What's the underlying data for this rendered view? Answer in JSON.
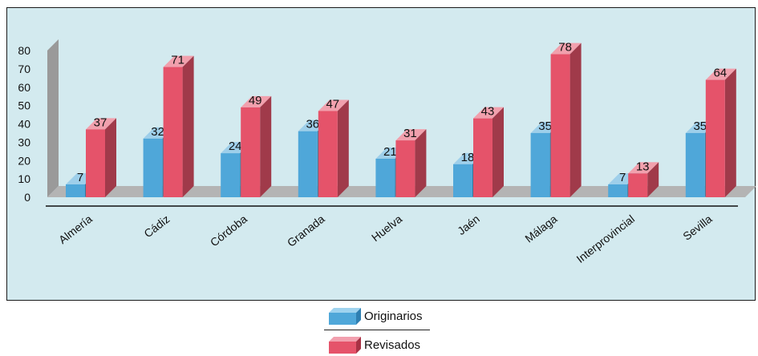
{
  "chart_data": {
    "type": "bar",
    "categories": [
      "Almería",
      "Cádiz",
      "Córdoba",
      "Granada",
      "Huelva",
      "Jaén",
      "Málaga",
      "Interprovincial",
      "Sevilla"
    ],
    "series": [
      {
        "name": "Originarios",
        "values": [
          7,
          32,
          24,
          36,
          21,
          18,
          35,
          7,
          35
        ],
        "color": "#4fa7d9"
      },
      {
        "name": "Revisados",
        "values": [
          37,
          71,
          49,
          47,
          31,
          43,
          78,
          13,
          64
        ],
        "color": "#e5536a"
      }
    ],
    "y_ticks": [
      "80",
      "70",
      "60",
      "50",
      "40",
      "30",
      "20",
      "10",
      "0"
    ],
    "ylim": [
      0,
      80
    ],
    "grid": false,
    "legend_position": "bottom",
    "colors": {
      "background": "#d3eaef",
      "floor": "#b4b4b4",
      "wall": "#9a9a9a"
    }
  }
}
